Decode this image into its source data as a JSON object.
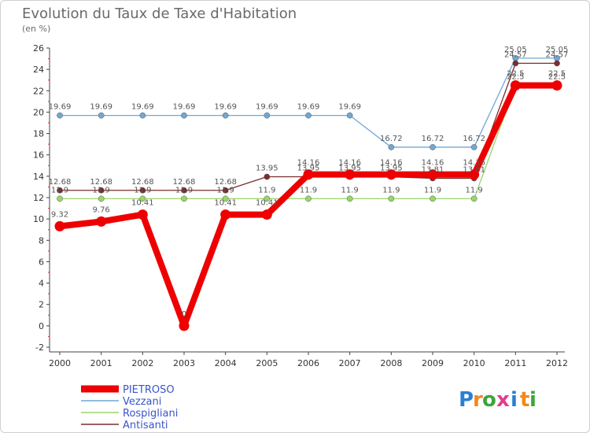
{
  "chart_data": {
    "type": "line",
    "title": "Evolution du Taux de Taxe d'Habitation",
    "subtitle": "(en %)",
    "x": [
      "2000",
      "2001",
      "2002",
      "2003",
      "2004",
      "2005",
      "2006",
      "2007",
      "2008",
      "2009",
      "2010",
      "2011",
      "2012"
    ],
    "ylim": [
      -2,
      26
    ],
    "yticks": [
      -2,
      0,
      2,
      4,
      6,
      8,
      10,
      12,
      14,
      16,
      18,
      20,
      22,
      24,
      26
    ],
    "grid": false,
    "legend_position": "bottom-left",
    "series": [
      {
        "name": "PIETROSO",
        "color": "#ee0000",
        "values": [
          9.32,
          9.76,
          10.41,
          0,
          10.41,
          10.41,
          14.16,
          14.16,
          14.16,
          14.16,
          14.16,
          22.5,
          22.5
        ],
        "labels": [
          "9.32",
          "9.76",
          "10.41",
          "0",
          "10.41",
          "10.41",
          "14.16",
          "14.16",
          "14.16",
          "14.16",
          "14.16",
          "22.5",
          "22.5"
        ]
      },
      {
        "name": "Vezzani",
        "color": "#6fa8d6",
        "values": [
          19.69,
          19.69,
          19.69,
          19.69,
          19.69,
          19.69,
          19.69,
          19.69,
          16.72,
          16.72,
          16.72,
          25.05,
          25.05
        ],
        "labels": [
          "19.69",
          "19.69",
          "19.69",
          "19.69",
          "19.69",
          "19.69",
          "19.69",
          "19.69",
          "16.72",
          "16.72",
          "16.72",
          "25.05",
          "25.05"
        ]
      },
      {
        "name": "Rospigliani",
        "color": "#99d66b",
        "values": [
          11.9,
          11.9,
          11.9,
          11.9,
          11.9,
          11.9,
          11.9,
          11.9,
          11.9,
          11.9,
          11.9,
          22.5,
          22.5
        ],
        "labels": [
          "11.9",
          "11.9",
          "11.9",
          "11.9",
          "11.9",
          "11.9",
          "11.9",
          "11.9",
          "11.9",
          "11.9",
          "11.9",
          "22.5",
          "22.5"
        ]
      },
      {
        "name": "Antisanti",
        "color": "#7a2e2e",
        "values": [
          12.68,
          12.68,
          12.68,
          12.68,
          12.68,
          13.95,
          13.95,
          13.95,
          13.95,
          13.81,
          13.81,
          24.57,
          24.57
        ],
        "labels": [
          "12.68",
          "12.68",
          "12.68",
          "12.68",
          "12.68",
          "13.95",
          "13.95",
          "13.95",
          "13.95",
          "13.81",
          "13.81",
          "24.57",
          "24.57"
        ]
      }
    ]
  },
  "logo": {
    "letters": [
      "P",
      "r",
      "o",
      "x",
      "i",
      "t",
      "i"
    ],
    "colors": [
      "#2a7fd4",
      "#f08a1c",
      "#3aa63a",
      "#e23c8c",
      "#2a7fd4",
      "#f08a1c",
      "#3aa63a"
    ]
  }
}
